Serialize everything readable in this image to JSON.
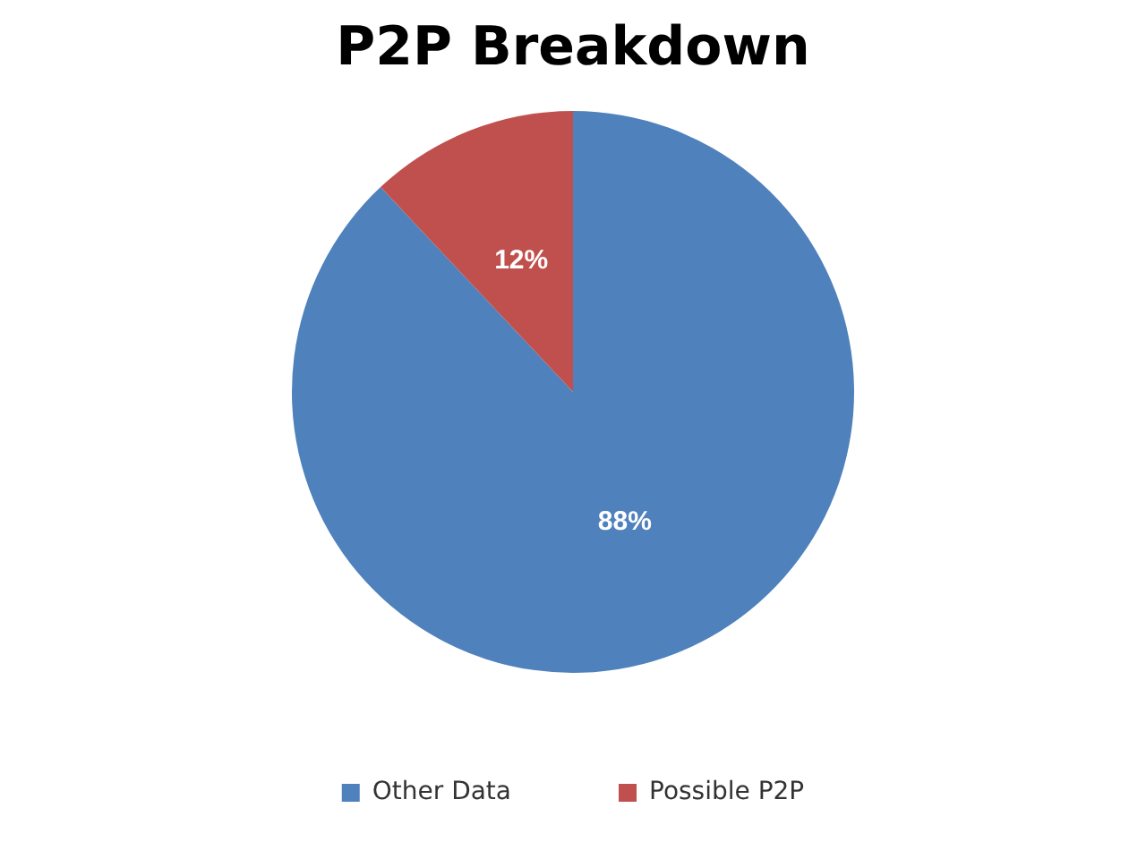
{
  "chart_data": {
    "type": "pie",
    "title": "P2P Breakdown",
    "categories": [
      "Other Data",
      "Possible P2P"
    ],
    "values": [
      88,
      12
    ],
    "colors": [
      "#4f81bd",
      "#c0504d"
    ],
    "value_labels": [
      "88%",
      "12%"
    ],
    "legend": "bottom"
  }
}
